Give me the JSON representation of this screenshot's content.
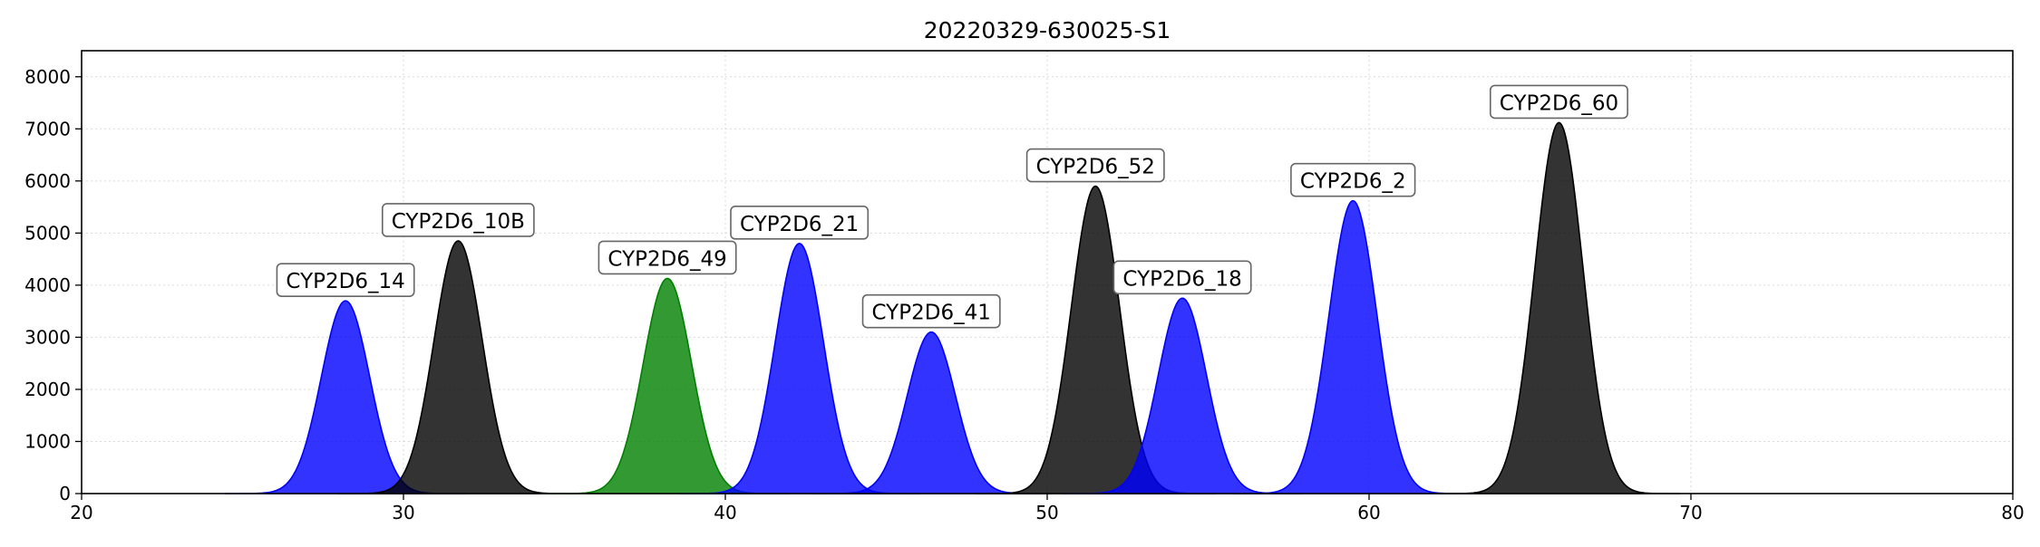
{
  "chart_data": {
    "type": "area",
    "title": "20220329-630025-S1",
    "xlabel": "",
    "ylabel": "",
    "xlim": [
      20,
      80
    ],
    "ylim": [
      0,
      8500
    ],
    "x_ticks": [
      20,
      30,
      40,
      50,
      60,
      70,
      80
    ],
    "y_ticks": [
      0,
      1000,
      2000,
      3000,
      4000,
      5000,
      6000,
      7000,
      8000
    ],
    "grid": true,
    "legend": "none",
    "peak_width_sigma": 0.75,
    "peaks": [
      {
        "label": "CYP2D6_14",
        "center": 28.2,
        "height": 3700,
        "color": "#0000ff"
      },
      {
        "label": "CYP2D6_10B",
        "center": 31.7,
        "height": 4850,
        "color": "#000000"
      },
      {
        "label": "CYP2D6_49",
        "center": 38.2,
        "height": 4130,
        "color": "#008000"
      },
      {
        "label": "CYP2D6_21",
        "center": 42.3,
        "height": 4800,
        "color": "#0000ff"
      },
      {
        "label": "CYP2D6_41",
        "center": 46.4,
        "height": 3100,
        "color": "#0000ff"
      },
      {
        "label": "CYP2D6_52",
        "center": 51.5,
        "height": 5900,
        "color": "#000000"
      },
      {
        "label": "CYP2D6_18",
        "center": 54.2,
        "height": 3750,
        "color": "#0000ff"
      },
      {
        "label": "CYP2D6_2",
        "center": 59.5,
        "height": 5620,
        "color": "#0000ff"
      },
      {
        "label": "CYP2D6_60",
        "center": 65.9,
        "height": 7120,
        "color": "#000000"
      }
    ]
  }
}
